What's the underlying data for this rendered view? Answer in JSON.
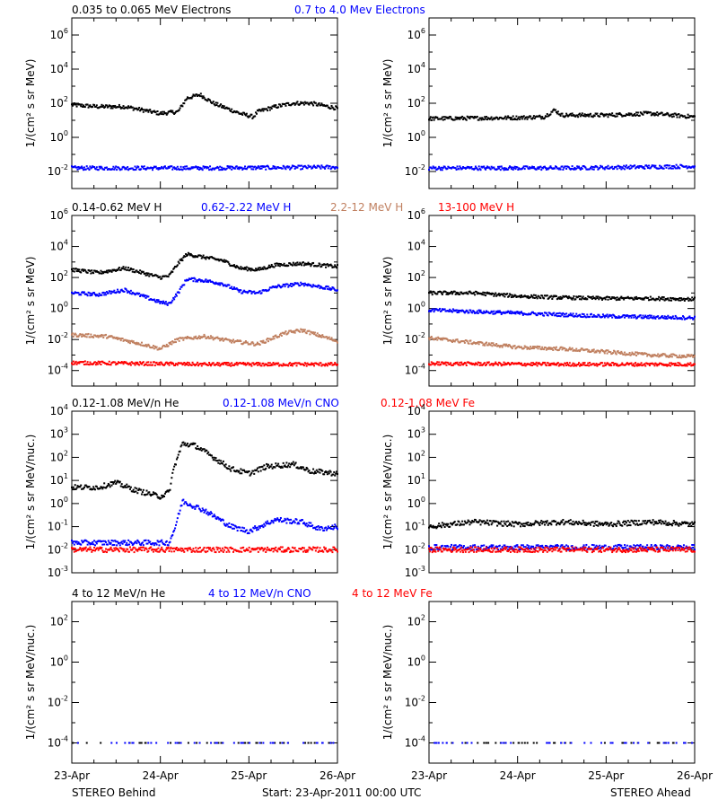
{
  "colors": {
    "black": "#000000",
    "blue": "#0000ff",
    "tan": "#c08060",
    "red": "#ff0000"
  },
  "footer": {
    "left": "STEREO Behind",
    "center": "Start: 23-Apr-2011 00:00 UTC",
    "right": "STEREO Ahead"
  },
  "x_ticks": [
    "23-Apr",
    "24-Apr",
    "25-Apr",
    "26-Apr"
  ],
  "chart_data": [
    {
      "type": "scatter",
      "panel": "electrons-behind",
      "side": "STEREO Behind",
      "y_scale": "log",
      "ylim_log10": [
        -3,
        7
      ],
      "y_ticks_exp": [
        -2,
        0,
        2,
        4,
        6
      ],
      "ylabel": "1/(cm² s sr MeV)",
      "xlim_days": [
        0,
        3
      ],
      "series": [
        {
          "name": "0.035 to 0.065 MeV Electrons",
          "color": "#000000",
          "points_days_log10": [
            [
              0,
              1.9
            ],
            [
              0.3,
              1.8
            ],
            [
              0.6,
              1.8
            ],
            [
              0.8,
              1.6
            ],
            [
              1.0,
              1.4
            ],
            [
              1.2,
              1.5
            ],
            [
              1.3,
              2.3
            ],
            [
              1.45,
              2.5
            ],
            [
              1.6,
              2.0
            ],
            [
              1.9,
              1.4
            ],
            [
              2.05,
              1.2
            ],
            [
              2.1,
              1.5
            ],
            [
              2.3,
              1.8
            ],
            [
              2.5,
              2.0
            ],
            [
              2.7,
              2.0
            ],
            [
              3.0,
              1.7
            ]
          ]
        },
        {
          "name": "0.7 to 4.0 Mev Electrons",
          "color": "#0000ff",
          "points_days_log10": [
            [
              0,
              -1.8
            ],
            [
              1.5,
              -1.8
            ],
            [
              3.0,
              -1.75
            ]
          ]
        }
      ]
    },
    {
      "type": "scatter",
      "panel": "electrons-ahead",
      "side": "STEREO Ahead",
      "y_scale": "log",
      "ylim_log10": [
        -3,
        7
      ],
      "y_ticks_exp": [
        -2,
        0,
        2,
        4,
        6
      ],
      "ylabel": "1/(cm² s sr MeV)",
      "xlim_days": [
        0,
        3
      ],
      "series": [
        {
          "name": "0.035 to 0.065 MeV Electrons",
          "color": "#000000",
          "points_days_log10": [
            [
              0,
              1.1
            ],
            [
              1.0,
              1.15
            ],
            [
              1.3,
              1.2
            ],
            [
              1.42,
              1.6
            ],
            [
              1.5,
              1.3
            ],
            [
              2.0,
              1.3
            ],
            [
              2.5,
              1.4
            ],
            [
              3.0,
              1.2
            ]
          ]
        },
        {
          "name": "0.7 to 4.0 Mev Electrons",
          "color": "#0000ff",
          "points_days_log10": [
            [
              0,
              -1.8
            ],
            [
              1.5,
              -1.8
            ],
            [
              3.0,
              -1.7
            ]
          ]
        }
      ]
    },
    {
      "type": "scatter",
      "panel": "protons-behind",
      "side": "STEREO Behind",
      "y_scale": "log",
      "ylim_log10": [
        -5,
        6
      ],
      "y_ticks_exp": [
        -4,
        -2,
        0,
        2,
        4,
        6
      ],
      "ylabel": "1/(cm² s sr MeV)",
      "xlim_days": [
        0,
        3
      ],
      "series": [
        {
          "name": "0.14-0.62 MeV H",
          "color": "#000000",
          "points_days_log10": [
            [
              0,
              2.5
            ],
            [
              0.3,
              2.3
            ],
            [
              0.6,
              2.6
            ],
            [
              0.8,
              2.3
            ],
            [
              1.0,
              2.0
            ],
            [
              1.1,
              2.1
            ],
            [
              1.2,
              2.9
            ],
            [
              1.3,
              3.5
            ],
            [
              1.5,
              3.3
            ],
            [
              1.7,
              3.1
            ],
            [
              1.9,
              2.6
            ],
            [
              2.1,
              2.5
            ],
            [
              2.3,
              2.8
            ],
            [
              2.6,
              2.9
            ],
            [
              2.8,
              2.8
            ],
            [
              3.0,
              2.7
            ]
          ]
        },
        {
          "name": "0.62-2.22 MeV H",
          "color": "#0000ff",
          "points_days_log10": [
            [
              0,
              1.0
            ],
            [
              0.3,
              0.9
            ],
            [
              0.6,
              1.2
            ],
            [
              0.8,
              0.8
            ],
            [
              1.0,
              0.4
            ],
            [
              1.1,
              0.3
            ],
            [
              1.2,
              1.0
            ],
            [
              1.3,
              1.9
            ],
            [
              1.5,
              1.8
            ],
            [
              1.7,
              1.6
            ],
            [
              1.9,
              1.1
            ],
            [
              2.1,
              1.0
            ],
            [
              2.3,
              1.4
            ],
            [
              2.6,
              1.6
            ],
            [
              2.8,
              1.4
            ],
            [
              3.0,
              1.2
            ]
          ]
        },
        {
          "name": "2.2-12 MeV H",
          "color": "#c08060",
          "points_days_log10": [
            [
              0,
              -1.7
            ],
            [
              0.4,
              -1.8
            ],
            [
              0.8,
              -2.3
            ],
            [
              1.0,
              -2.6
            ],
            [
              1.2,
              -2.0
            ],
            [
              1.5,
              -1.8
            ],
            [
              1.8,
              -2.1
            ],
            [
              2.1,
              -2.3
            ],
            [
              2.4,
              -1.6
            ],
            [
              2.6,
              -1.4
            ],
            [
              3.0,
              -2.1
            ]
          ]
        },
        {
          "name": "13-100 MeV H",
          "color": "#ff0000",
          "points_days_log10": [
            [
              0,
              -3.5
            ],
            [
              1.5,
              -3.6
            ],
            [
              3.0,
              -3.6
            ]
          ]
        }
      ]
    },
    {
      "type": "scatter",
      "panel": "protons-ahead",
      "side": "STEREO Ahead",
      "y_scale": "log",
      "ylim_log10": [
        -5,
        6
      ],
      "y_ticks_exp": [
        -4,
        -2,
        0,
        2,
        4,
        6
      ],
      "ylabel": "1/(cm² s sr MeV)",
      "xlim_days": [
        0,
        3
      ],
      "series": [
        {
          "name": "0.14-0.62 MeV H",
          "color": "#000000",
          "points_days_log10": [
            [
              0,
              1.0
            ],
            [
              0.5,
              1.0
            ],
            [
              1.0,
              0.8
            ],
            [
              1.5,
              0.7
            ],
            [
              2.0,
              0.65
            ],
            [
              2.5,
              0.65
            ],
            [
              3.0,
              0.6
            ]
          ]
        },
        {
          "name": "0.62-2.22 MeV H",
          "color": "#0000ff",
          "points_days_log10": [
            [
              0,
              -0.1
            ],
            [
              0.5,
              -0.2
            ],
            [
              1.0,
              -0.3
            ],
            [
              1.5,
              -0.4
            ],
            [
              2.0,
              -0.5
            ],
            [
              2.5,
              -0.55
            ],
            [
              3.0,
              -0.6
            ]
          ]
        },
        {
          "name": "2.2-12 MeV H",
          "color": "#c08060",
          "points_days_log10": [
            [
              0,
              -1.9
            ],
            [
              0.5,
              -2.2
            ],
            [
              1.0,
              -2.5
            ],
            [
              1.5,
              -2.6
            ],
            [
              2.0,
              -2.8
            ],
            [
              2.5,
              -3.0
            ],
            [
              3.0,
              -3.1
            ]
          ]
        },
        {
          "name": "13-100 MeV H",
          "color": "#ff0000",
          "points_days_log10": [
            [
              0,
              -3.55
            ],
            [
              1.5,
              -3.6
            ],
            [
              3.0,
              -3.6
            ]
          ]
        }
      ]
    },
    {
      "type": "scatter",
      "panel": "heavy-low-behind",
      "side": "STEREO Behind",
      "y_scale": "log",
      "ylim_log10": [
        -3,
        4
      ],
      "y_ticks_exp": [
        -3,
        -2,
        -1,
        0,
        1,
        2,
        3,
        4
      ],
      "ylabel": "1/(cm² s sr MeV/nuc.)",
      "xlim_days": [
        0,
        3
      ],
      "series": [
        {
          "name": "0.12-1.08 MeV/n He",
          "color": "#000000",
          "points_days_log10": [
            [
              0,
              0.7
            ],
            [
              0.3,
              0.7
            ],
            [
              0.5,
              0.9
            ],
            [
              0.7,
              0.6
            ],
            [
              0.9,
              0.4
            ],
            [
              1.0,
              0.3
            ],
            [
              1.1,
              0.5
            ],
            [
              1.15,
              1.5
            ],
            [
              1.25,
              2.6
            ],
            [
              1.4,
              2.5
            ],
            [
              1.6,
              2.0
            ],
            [
              1.8,
              1.5
            ],
            [
              2.0,
              1.3
            ],
            [
              2.2,
              1.6
            ],
            [
              2.5,
              1.7
            ],
            [
              2.7,
              1.4
            ],
            [
              3.0,
              1.3
            ]
          ]
        },
        {
          "name": "0.12-1.08 MeV/n CNO",
          "color": "#0000ff",
          "points_days_log10": [
            [
              0,
              -1.7
            ],
            [
              1.1,
              -1.7
            ],
            [
              1.17,
              -1.0
            ],
            [
              1.25,
              0.1
            ],
            [
              1.5,
              -0.3
            ],
            [
              1.8,
              -1.0
            ],
            [
              2.0,
              -1.2
            ],
            [
              2.3,
              -0.7
            ],
            [
              2.6,
              -0.8
            ],
            [
              2.8,
              -1.1
            ],
            [
              3.0,
              -1.0
            ]
          ]
        },
        {
          "name": "0.12-1.08 MeV Fe",
          "color": "#ff0000",
          "points_days_log10": [
            [
              0,
              -2.0
            ],
            [
              1.5,
              -2.0
            ],
            [
              3.0,
              -2.0
            ]
          ]
        }
      ]
    },
    {
      "type": "scatter",
      "panel": "heavy-low-ahead",
      "side": "STEREO Ahead",
      "y_scale": "log",
      "ylim_log10": [
        -3,
        4
      ],
      "y_ticks_exp": [
        -3,
        -2,
        -1,
        0,
        1,
        2,
        3,
        4
      ],
      "ylabel": "1/(cm² s sr MeV/nuc.)",
      "xlim_days": [
        0,
        3
      ],
      "series": [
        {
          "name": "0.12-1.08 MeV/n He",
          "color": "#000000",
          "points_days_log10": [
            [
              0,
              -1.0
            ],
            [
              0.5,
              -0.8
            ],
            [
              1.0,
              -0.9
            ],
            [
              1.5,
              -0.8
            ],
            [
              2.0,
              -0.9
            ],
            [
              2.5,
              -0.8
            ],
            [
              3.0,
              -0.9
            ]
          ]
        },
        {
          "name": "0.12-1.08 MeV/n CNO",
          "color": "#0000ff",
          "points_days_log10": [
            [
              0,
              -1.9
            ],
            [
              1.5,
              -1.9
            ],
            [
              3.0,
              -1.9
            ]
          ]
        },
        {
          "name": "0.12-1.08 MeV Fe",
          "color": "#ff0000",
          "points_days_log10": [
            [
              0,
              -2.0
            ],
            [
              1.5,
              -2.0
            ],
            [
              3.0,
              -2.0
            ]
          ]
        }
      ]
    },
    {
      "type": "scatter",
      "panel": "heavy-high-behind",
      "side": "STEREO Behind",
      "y_scale": "log",
      "ylim_log10": [
        -5,
        3
      ],
      "y_ticks_exp": [
        -4,
        -2,
        0,
        2
      ],
      "ylabel": "1/(cm² s sr MeV/nuc.)",
      "xlim_days": [
        0,
        3
      ],
      "series": [
        {
          "name": "4 to 12 MeV/n He",
          "color": "#000000",
          "points_days_log10": [
            [
              0,
              -4.0
            ],
            [
              1.5,
              -4.0
            ],
            [
              3.0,
              -4.0
            ]
          ]
        },
        {
          "name": "4 to 12 MeV/n CNO",
          "color": "#0000ff",
          "points_days_log10": [
            [
              0,
              -4.0
            ],
            [
              3.0,
              -4.0
            ]
          ]
        },
        {
          "name": "4 to 12 MeV Fe",
          "color": "#ff0000",
          "points_days_log10": []
        }
      ]
    },
    {
      "type": "scatter",
      "panel": "heavy-high-ahead",
      "side": "STEREO Ahead",
      "y_scale": "log",
      "ylim_log10": [
        -5,
        3
      ],
      "y_ticks_exp": [
        -4,
        -2,
        0,
        2
      ],
      "ylabel": "1/(cm² s sr MeV/nuc.)",
      "xlim_days": [
        0,
        3
      ],
      "series": [
        {
          "name": "4 to 12 MeV/n He",
          "color": "#000000",
          "points_days_log10": [
            [
              0.2,
              -4.0
            ],
            [
              1.5,
              -4.0
            ],
            [
              2.8,
              -4.0
            ]
          ]
        },
        {
          "name": "4 to 12 MeV/n CNO",
          "color": "#0000ff",
          "points_days_log10": [
            [
              0.5,
              -4.0
            ],
            [
              2.0,
              -4.0
            ]
          ]
        },
        {
          "name": "4 to 12 MeV Fe",
          "color": "#ff0000",
          "points_days_log10": []
        }
      ]
    }
  ]
}
